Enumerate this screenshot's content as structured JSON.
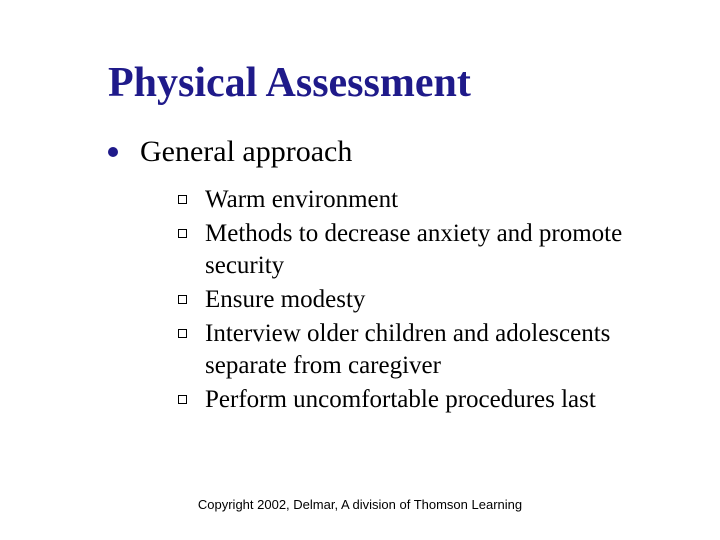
{
  "title": "Physical Assessment",
  "title_color": "#1f1a8a",
  "text_color": "#000000",
  "bullet1_color": "#1f1a8a",
  "bullet2_border": "#000000",
  "background_color": "#ffffff",
  "title_fontsize": 42,
  "level1_fontsize": 30,
  "level2_fontsize": 25,
  "level1": {
    "text": "General approach"
  },
  "level2_items": [
    {
      "text": "Warm environment"
    },
    {
      "text": "Methods to decrease anxiety and promote security"
    },
    {
      "text": "Ensure modesty"
    },
    {
      "text": "Interview older children and adolescents separate from caregiver"
    },
    {
      "text": "Perform uncomfortable procedures last"
    }
  ],
  "footer": "Copyright 2002, Delmar, A division of Thomson Learning"
}
